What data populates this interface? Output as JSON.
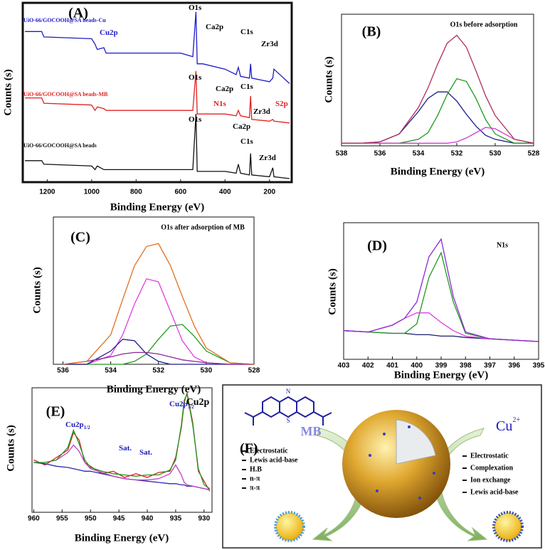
{
  "chart_data": [
    {
      "type": "line",
      "panel": "(A)",
      "xlabel": "Binding Energy (eV)",
      "ylabel": "Counts (s)",
      "x": [
        1300,
        1225,
        1215,
        1000,
        985,
        975,
        945,
        935,
        600,
        545,
        531,
        525,
        500,
        400,
        350,
        340,
        330,
        290,
        285,
        280,
        200,
        185,
        180,
        110
      ],
      "series": [
        {
          "name": "UiO-66/GOCOOH@SA beads-Cu",
          "color": "#1c1cc8",
          "values": [
            84,
            84,
            81,
            80,
            77,
            74,
            75,
            72,
            72,
            70,
            95,
            66,
            66,
            63,
            60,
            64,
            59,
            58,
            66,
            58,
            56,
            58,
            63,
            55
          ]
        },
        {
          "name": "UiO-66/GOCOOH@SA beads-MB",
          "color": "#e02020",
          "values": [
            47,
            47,
            44,
            43,
            40,
            42,
            41,
            40,
            40,
            40,
            62,
            38,
            38,
            38,
            37,
            40,
            37,
            36,
            48,
            35,
            34,
            35,
            34,
            33
          ]
        },
        {
          "name": "UiO-66/GOCOOH@SA beads",
          "color": "#111111",
          "values": [
            12,
            12,
            10,
            9,
            7,
            9,
            7,
            7,
            7,
            7,
            38,
            6,
            6,
            6,
            5,
            10,
            5,
            4,
            16,
            4,
            3,
            8,
            3,
            2
          ]
        }
      ],
      "xlim": [
        1310,
        100
      ],
      "ylim": [
        0,
        100
      ],
      "xticks": [
        1200,
        1000,
        800,
        600,
        400,
        200
      ],
      "annotations": [
        {
          "text": "O1s"
        },
        {
          "text": "Ca2p"
        },
        {
          "text": "C1s"
        },
        {
          "text": "Zr3d"
        },
        {
          "text": "Cu2p"
        },
        {
          "text": "O1s"
        },
        {
          "text": "Ca2p"
        },
        {
          "text": "C1s"
        },
        {
          "text": "N1s"
        },
        {
          "text": "S2p"
        },
        {
          "text": "Zr3d"
        },
        {
          "text": "O1s"
        },
        {
          "text": "Ca2p"
        },
        {
          "text": "C1s"
        },
        {
          "text": "Zr3d"
        }
      ]
    },
    {
      "type": "line",
      "panel": "(B)",
      "title": "O1s before adsorption",
      "xlabel": "Binding Energy (eV)",
      "ylabel": "Counts (s)",
      "x": [
        538,
        537,
        536,
        535,
        534,
        533.5,
        533,
        532.5,
        532,
        531.5,
        531,
        530.5,
        530,
        529,
        528
      ],
      "series": [
        {
          "color": "#1c1c8c",
          "values": [
            2,
            2,
            3,
            9,
            26,
            36,
            41,
            41,
            34,
            24,
            15,
            8,
            5,
            2,
            2
          ]
        },
        {
          "color": "#1f9a1f",
          "values": [
            2,
            2,
            2,
            2,
            5,
            10,
            23,
            39,
            51,
            49,
            36,
            20,
            9,
            2,
            2
          ]
        },
        {
          "color": "#d03cd0",
          "values": [
            2,
            2,
            2,
            2,
            2,
            2,
            2,
            2,
            3,
            6,
            10,
            14,
            13,
            5,
            2
          ]
        },
        {
          "color": "#b0305a",
          "values": [
            2,
            2,
            3,
            9,
            29,
            44,
            62,
            78,
            84,
            75,
            57,
            38,
            23,
            5,
            2
          ]
        }
      ],
      "xlim": [
        538,
        528
      ],
      "ylim": [
        0,
        100
      ],
      "xticks": [
        538,
        536,
        534,
        532,
        530,
        528
      ],
      "annotations": []
    },
    {
      "type": "line",
      "panel": "(C)",
      "title": "O1s after adsorption of MB",
      "xlabel": "Binding Energy (eV)",
      "ylabel": "Counts (s)",
      "x": [
        536,
        535,
        534,
        533.5,
        533,
        532.5,
        532,
        531.5,
        531,
        530.5,
        530,
        529,
        528
      ],
      "series": [
        {
          "color": "#e040e0",
          "values": [
            0,
            0,
            6,
            20,
            41,
            58,
            56,
            36,
            16,
            5,
            1,
            0,
            0
          ]
        },
        {
          "color": "#1f9a1f",
          "values": [
            0,
            0,
            0,
            0,
            2,
            7,
            17,
            26,
            27,
            19,
            9,
            1,
            0
          ]
        },
        {
          "color": "#1c1c8c",
          "values": [
            0,
            0,
            9,
            17,
            16,
            7,
            2,
            0,
            0,
            0,
            0,
            0,
            0
          ]
        },
        {
          "color": "#8a2a9a",
          "values": [
            0,
            2,
            5,
            7,
            8,
            8,
            7,
            5,
            3,
            2,
            1,
            0,
            0
          ]
        },
        {
          "color": "#e07020",
          "values": [
            0,
            2,
            20,
            44,
            67,
            80,
            82,
            67,
            46,
            26,
            11,
            1,
            0
          ]
        }
      ],
      "xlim": [
        536.4,
        528
      ],
      "ylim": [
        0,
        100
      ],
      "xticks": [
        536,
        534,
        532,
        530,
        528
      ],
      "annotations": []
    },
    {
      "type": "line",
      "panel": "(D)",
      "title": "N1s",
      "xlabel": "Binding Energy (eV)",
      "ylabel": "Counts (s)",
      "x": [
        403,
        402,
        401,
        400.5,
        400,
        399.5,
        399,
        398.5,
        398,
        397,
        396,
        395
      ],
      "series": [
        {
          "color": "#1c1c6c",
          "values": [
            21,
            20,
            19,
            19,
            18,
            18,
            17,
            17,
            16,
            15,
            14,
            13
          ]
        },
        {
          "color": "#1f9a1f",
          "values": [
            21,
            20,
            19,
            19,
            26,
            60,
            78,
            42,
            19,
            15,
            14,
            13
          ]
        },
        {
          "color": "#e040e0",
          "values": [
            21,
            20,
            25,
            30,
            34,
            34,
            27,
            21,
            17,
            15,
            14,
            13
          ]
        },
        {
          "color": "#8a2ad0",
          "values": [
            21,
            20,
            25,
            30,
            42,
            75,
            88,
            46,
            20,
            15,
            14,
            13
          ]
        }
      ],
      "xlim": [
        403,
        395
      ],
      "ylim": [
        0,
        100
      ],
      "xticks": [
        403,
        402,
        401,
        400,
        399,
        398,
        397,
        396,
        395
      ],
      "annotations": []
    },
    {
      "type": "line",
      "panel": "(E)",
      "title": "Cu2p",
      "xlabel": "Binding Energy (eV)",
      "ylabel": "Counts (s)",
      "x": [
        960,
        958,
        956,
        954,
        953,
        952,
        951,
        950,
        948,
        946,
        944,
        942,
        940,
        938,
        936,
        935,
        934,
        933.5,
        933,
        932,
        931,
        930,
        929
      ],
      "series": [
        {
          "color": "#d82020",
          "values": [
            42,
            38,
            44,
            50,
            64,
            58,
            40,
            37,
            31,
            33,
            28,
            31,
            28,
            32,
            33,
            44,
            68,
            88,
            96,
            72,
            33,
            25,
            17
          ]
        },
        {
          "color": "#2a2ab0",
          "values": [
            40,
            39,
            37,
            36,
            35,
            34,
            33,
            33,
            31,
            29,
            27,
            26,
            25,
            24,
            23,
            23,
            22,
            22,
            21,
            21,
            20,
            19,
            18
          ]
        },
        {
          "color": "#c040c0",
          "values": [
            40,
            40,
            42,
            48,
            54,
            49,
            40,
            35,
            32,
            29,
            27,
            26,
            26,
            27,
            31,
            38,
            30,
            24,
            22,
            21,
            20,
            19,
            18
          ]
        },
        {
          "color": "#1f9a1f",
          "values": [
            40,
            40,
            42,
            52,
            66,
            55,
            42,
            36,
            33,
            31,
            30,
            29,
            30,
            30,
            34,
            42,
            70,
            90,
            95,
            70,
            35,
            22,
            19
          ]
        }
      ],
      "xlim": [
        960.3,
        928.6
      ],
      "ylim": [
        0,
        100
      ],
      "xticks": [
        960,
        955,
        950,
        945,
        940,
        935,
        930
      ],
      "annotations": [
        {
          "text": "Cu2p",
          "sub": "1/2"
        },
        {
          "text": "Cu2p",
          "sub": "3/2"
        },
        {
          "text": "Sat."
        },
        {
          "text": "Sat."
        }
      ]
    }
  ],
  "diagram": {
    "panel": "(F)",
    "mb": "MB",
    "cu": {
      "text": "Cu",
      "sup": "2+"
    },
    "left": [
      "Electrostatic",
      "Lewis acid-base",
      "H.B",
      "n-π",
      "π-π"
    ],
    "right": [
      "Electrostatic",
      "Complexation",
      "Ion exchange",
      "Lewis acid-base"
    ]
  }
}
